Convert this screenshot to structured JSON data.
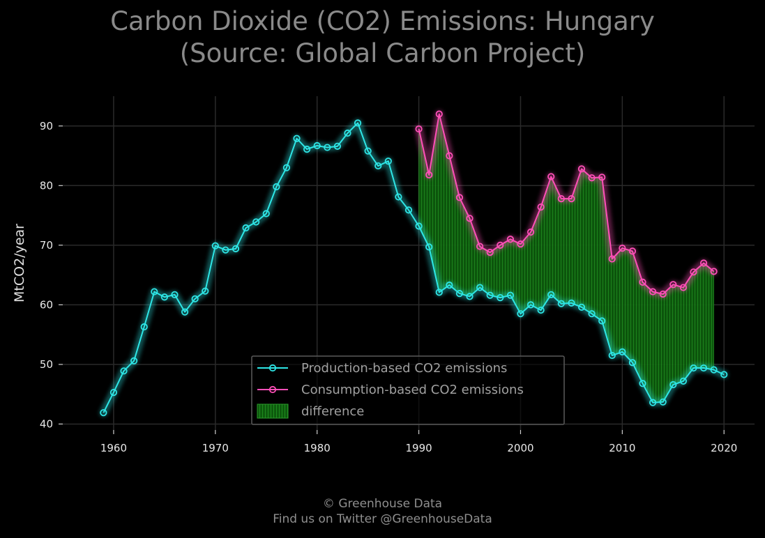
{
  "title_lines": [
    "Carbon Dioxide (CO2) Emissions: Hungary",
    "(Source: Global Carbon Project)"
  ],
  "footer": {
    "line1": "© Greenhouse Data",
    "line2": "Find us on Twitter @GreenhouseData"
  },
  "colors": {
    "background": "#000000",
    "production": "#2ee6e6",
    "consumption": "#ff4fb8",
    "difference": "#1f7a1f",
    "grid": "#2a2a2a",
    "title": "#8a8a8a"
  },
  "chart_data": {
    "type": "line",
    "title": "Carbon Dioxide (CO2) Emissions: Hungary (Source: Global Carbon Project)",
    "xlabel": "",
    "ylabel": "MtCO2/year",
    "xlim": [
      1955,
      2023
    ],
    "ylim": [
      39,
      95
    ],
    "xticks": [
      1960,
      1970,
      1980,
      1990,
      2000,
      2010,
      2020
    ],
    "yticks": [
      40,
      50,
      60,
      70,
      80,
      90
    ],
    "grid": true,
    "legend_position": "bottom-center",
    "series": [
      {
        "name": "Production-based CO2 emissions",
        "color": "#2ee6e6",
        "x": [
          1959,
          1960,
          1961,
          1962,
          1963,
          1964,
          1965,
          1966,
          1967,
          1968,
          1969,
          1970,
          1971,
          1972,
          1973,
          1974,
          1975,
          1976,
          1977,
          1978,
          1979,
          1980,
          1981,
          1982,
          1983,
          1984,
          1985,
          1986,
          1987,
          1988,
          1989,
          1990,
          1991,
          1992,
          1993,
          1994,
          1995,
          1996,
          1997,
          1998,
          1999,
          2000,
          2001,
          2002,
          2003,
          2004,
          2005,
          2006,
          2007,
          2008,
          2009,
          2010,
          2011,
          2012,
          2013,
          2014,
          2015,
          2016,
          2017,
          2018,
          2019,
          2020
        ],
        "y": [
          41.9,
          45.3,
          48.9,
          50.6,
          56.3,
          62.2,
          61.3,
          61.7,
          58.8,
          61.0,
          62.3,
          69.9,
          69.2,
          69.4,
          72.9,
          73.9,
          75.3,
          79.8,
          83.0,
          87.9,
          86.1,
          86.7,
          86.4,
          86.6,
          88.8,
          90.5,
          85.8,
          83.3,
          84.1,
          78.1,
          75.9,
          73.2,
          69.7,
          62.1,
          63.3,
          61.9,
          61.4,
          62.9,
          61.6,
          61.2,
          61.6,
          58.5,
          60.0,
          59.1,
          61.7,
          60.2,
          60.3,
          59.6,
          58.5,
          57.3,
          51.5,
          52.1,
          50.3,
          46.8,
          43.6,
          43.7,
          46.6,
          47.2,
          49.4,
          49.4,
          49.1,
          48.3
        ]
      },
      {
        "name": "Consumption-based CO2 emissions",
        "color": "#ff4fb8",
        "x": [
          1990,
          1991,
          1992,
          1993,
          1994,
          1995,
          1996,
          1997,
          1998,
          1999,
          2000,
          2001,
          2002,
          2003,
          2004,
          2005,
          2006,
          2007,
          2008,
          2009,
          2010,
          2011,
          2012,
          2013,
          2014,
          2015,
          2016,
          2017,
          2018,
          2019
        ],
        "y": [
          89.5,
          81.8,
          92.0,
          85.0,
          78.0,
          74.5,
          69.8,
          68.8,
          70.0,
          71.0,
          70.2,
          72.2,
          76.4,
          81.5,
          77.8,
          77.8,
          82.8,
          81.3,
          81.4,
          67.7,
          69.5,
          69.0,
          63.8,
          62.2,
          61.8,
          63.4,
          62.9,
          65.5,
          67.0,
          65.6
        ]
      }
    ],
    "fill_between": {
      "name": "difference",
      "color": "#1f7a1f",
      "x_range": [
        1990,
        2019
      ]
    }
  }
}
